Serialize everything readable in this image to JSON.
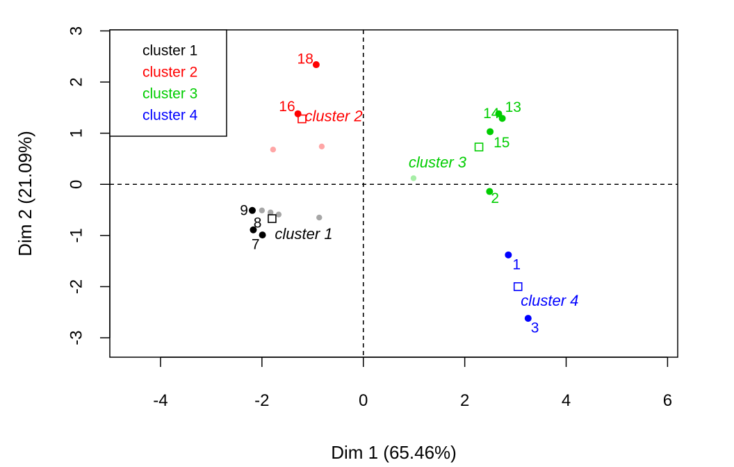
{
  "chart_data": {
    "type": "scatter",
    "xlabel": "Dim 1 (65.46%)",
    "ylabel": "Dim 2 (21.09%)",
    "xlim": [
      -5,
      6.2
    ],
    "ylim": [
      -3.38,
      3.02
    ],
    "xticks": [
      -4,
      -2,
      0,
      2,
      4,
      6
    ],
    "yticks": [
      -3,
      -2,
      -1,
      0,
      1,
      2,
      3
    ],
    "reference_lines": {
      "x": 0,
      "y": 0,
      "style": "dashed"
    },
    "legend": {
      "placement": "top-left",
      "entries": [
        {
          "label": "cluster 1",
          "color": "#000000"
        },
        {
          "label": "cluster 2",
          "color": "#ff0000"
        },
        {
          "label": "cluster 3",
          "color": "#00cd00"
        },
        {
          "label": "cluster 4",
          "color": "#0000ff"
        }
      ]
    },
    "clusters": [
      {
        "name": "cluster 1",
        "color": "#000000",
        "centroid": {
          "x": -1.8,
          "y": -0.67,
          "label": "cluster 1"
        },
        "points": [
          {
            "label": "9",
            "x": -2.19,
            "y": -0.51
          },
          {
            "label": "8",
            "x": -2.17,
            "y": -0.89
          },
          {
            "label": "7",
            "x": -1.99,
            "y": -0.99
          }
        ],
        "supplementary": [
          {
            "x": -2.0,
            "y": -0.51
          },
          {
            "x": -1.83,
            "y": -0.55
          },
          {
            "x": -1.67,
            "y": -0.59
          },
          {
            "x": -0.87,
            "y": -0.65
          }
        ]
      },
      {
        "name": "cluster 2",
        "color": "#ff0000",
        "centroid": {
          "x": -1.21,
          "y": 1.28,
          "label": "cluster 2"
        },
        "points": [
          {
            "label": "18",
            "x": -0.93,
            "y": 2.34
          },
          {
            "label": "16",
            "x": -1.29,
            "y": 1.38
          }
        ],
        "supplementary": [
          {
            "x": -1.78,
            "y": 0.68
          },
          {
            "x": -0.82,
            "y": 0.74
          }
        ]
      },
      {
        "name": "cluster 3",
        "color": "#00cd00",
        "centroid": {
          "x": 2.28,
          "y": 0.73,
          "label": "cluster 3"
        },
        "points": [
          {
            "label": "13",
            "x": 2.74,
            "y": 1.29
          },
          {
            "label": "14",
            "x": 2.67,
            "y": 1.38
          },
          {
            "label": "15",
            "x": 2.5,
            "y": 1.03
          },
          {
            "label": "2",
            "x": 2.49,
            "y": -0.14
          }
        ],
        "supplementary": [
          {
            "x": 0.99,
            "y": 0.12
          }
        ]
      },
      {
        "name": "cluster 4",
        "color": "#0000ff",
        "centroid": {
          "x": 3.05,
          "y": -2.0,
          "label": "cluster 4"
        },
        "points": [
          {
            "label": "1",
            "x": 2.86,
            "y": -1.38
          },
          {
            "label": "3",
            "x": 3.25,
            "y": -2.62
          }
        ],
        "supplementary": []
      }
    ]
  }
}
